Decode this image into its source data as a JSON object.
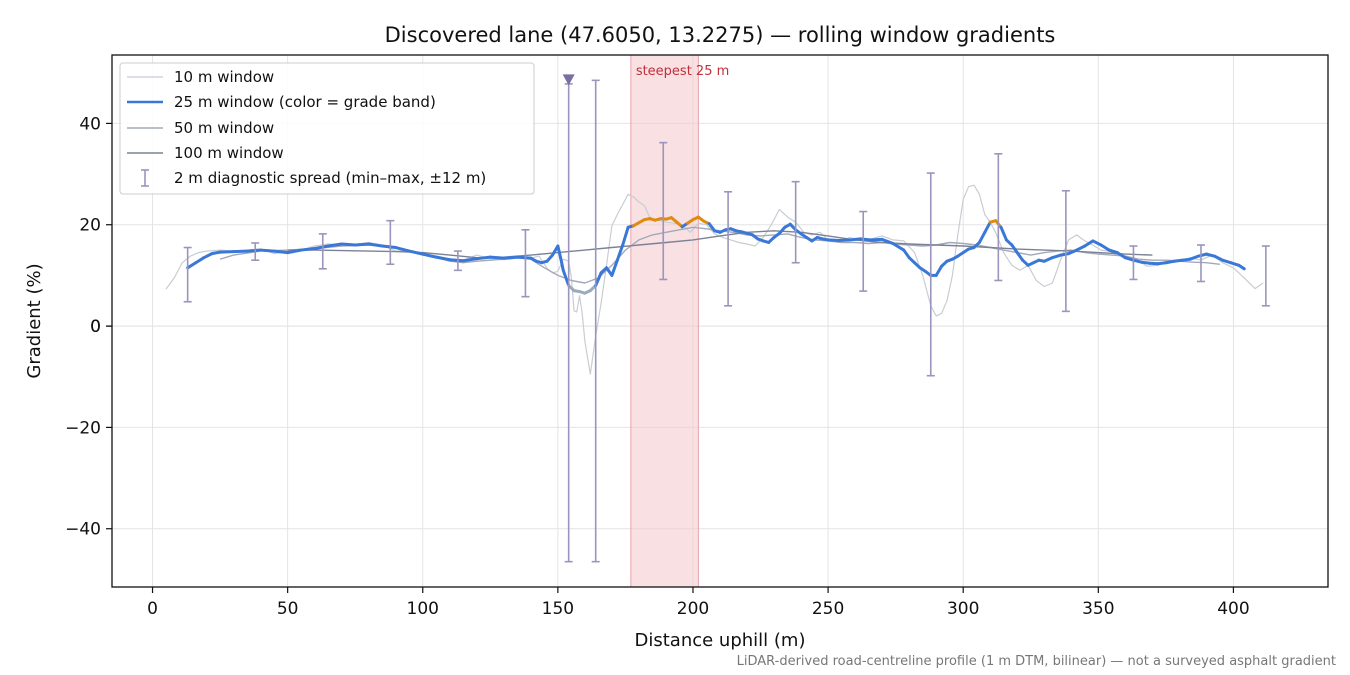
{
  "chart_data": {
    "type": "line",
    "title": "Discovered lane (47.6050, 13.2275) — rolling window gradients",
    "xlabel": "Distance uphill (m)",
    "ylabel": "Gradient (%)",
    "xlim": [
      -15,
      435
    ],
    "ylim": [
      -51.5,
      53.5
    ],
    "xticks": [
      0,
      50,
      100,
      150,
      200,
      250,
      300,
      350,
      400
    ],
    "yticks": [
      -40,
      -20,
      0,
      20,
      40
    ],
    "grid": true,
    "legend_position": "top-left",
    "footnote": "LiDAR-derived road-centreline profile (1 m DTM, bilinear) — not a surveyed asphalt gradient",
    "steepest_span": {
      "x0": 177,
      "x1": 202,
      "label": "steepest 25 m",
      "color": "#f2c6cc"
    },
    "marker": {
      "x": 154,
      "y": 48.5,
      "color": "#7a6fa0"
    },
    "band_colors": {
      "normal": "#3a78d8",
      "steep": "#e08a10",
      "easy": "#9aabbb"
    },
    "series": [
      {
        "name": "10 m window",
        "color": "#c8cdd3",
        "width": 1.2,
        "x": [
          5,
          8,
          11,
          14,
          17,
          20,
          25,
          30,
          35,
          40,
          45,
          50,
          55,
          60,
          65,
          70,
          75,
          80,
          85,
          90,
          95,
          100,
          105,
          110,
          115,
          120,
          125,
          130,
          135,
          140,
          143,
          146,
          148,
          150,
          152,
          154,
          155,
          156,
          157,
          158,
          159,
          160,
          162,
          164,
          166,
          168,
          170,
          172,
          174,
          176,
          178,
          180,
          182,
          184,
          186,
          188,
          190,
          193,
          196,
          199,
          202,
          205,
          208,
          211,
          214,
          217,
          220,
          223,
          226,
          229,
          232,
          235,
          238,
          241,
          244,
          247,
          250,
          254,
          258,
          262,
          266,
          270,
          274,
          278,
          282,
          285,
          288,
          290,
          292,
          294,
          296,
          298,
          300,
          302,
          304,
          306,
          308,
          310,
          312,
          315,
          318,
          321,
          324,
          327,
          330,
          333,
          336,
          339,
          342,
          345,
          348,
          351,
          354,
          357,
          360,
          364,
          368,
          372,
          376,
          380,
          384,
          388,
          392,
          396,
          400,
          404,
          408,
          411
        ],
        "y": [
          7.3,
          9.5,
          12.5,
          13.8,
          14.5,
          14.8,
          15.0,
          14.8,
          15.0,
          15.2,
          14.3,
          14.8,
          15.0,
          15.8,
          16.2,
          16.0,
          16.1,
          16.5,
          16.0,
          14.8,
          14.9,
          14.3,
          13.8,
          13.2,
          13.0,
          14.0,
          13.3,
          13.1,
          13.4,
          13.4,
          13.8,
          11.4,
          10.5,
          10.8,
          13.2,
          12.8,
          9.5,
          3.0,
          2.8,
          6.0,
          2.5,
          -3.0,
          -9.5,
          -2.0,
          4.5,
          12.0,
          19.8,
          22.0,
          24.0,
          26.0,
          25.5,
          24.5,
          23.8,
          21.5,
          21.0,
          20.8,
          20.5,
          20.3,
          20.0,
          18.5,
          20.3,
          20.0,
          18.2,
          17.5,
          17.0,
          16.5,
          16.2,
          15.8,
          17.5,
          20.0,
          23.0,
          21.5,
          20.5,
          18.5,
          18.0,
          18.5,
          17.0,
          16.5,
          17.5,
          17.0,
          17.2,
          17.8,
          17.0,
          16.8,
          14.5,
          10.0,
          4.0,
          2.0,
          2.5,
          5.0,
          10.0,
          18.0,
          25.0,
          27.5,
          27.8,
          26.0,
          22.0,
          20.5,
          18.5,
          14.5,
          12.0,
          11.0,
          12.0,
          9.0,
          7.8,
          8.5,
          13.0,
          17.0,
          18.0,
          16.8,
          16.0,
          15.0,
          14.8,
          14.0,
          13.8,
          13.2,
          11.8,
          12.0,
          13.0,
          12.8,
          13.5,
          13.0,
          14.0,
          12.5,
          11.5,
          9.5,
          7.4,
          8.5
        ]
      },
      {
        "name": "25 m window (color = grade band)",
        "color": "#3a78d8",
        "width": 2.5,
        "x": [
          13,
          16,
          19,
          22,
          25,
          30,
          35,
          40,
          45,
          50,
          55,
          60,
          65,
          70,
          75,
          80,
          85,
          90,
          95,
          100,
          105,
          110,
          115,
          120,
          125,
          130,
          135,
          140,
          142,
          144,
          146,
          148,
          150,
          151,
          152,
          154,
          156,
          158,
          160,
          162,
          164,
          166,
          168,
          170,
          172,
          174,
          176,
          178,
          180,
          182,
          184,
          186,
          188,
          190,
          192,
          194,
          196,
          198,
          200,
          202,
          204,
          206,
          208,
          210,
          212,
          214,
          216,
          218,
          220,
          222,
          224,
          226,
          228,
          230,
          232,
          234,
          236,
          238,
          240,
          242,
          244,
          246,
          248,
          250,
          254,
          258,
          262,
          266,
          270,
          274,
          278,
          280,
          282,
          284,
          286,
          288,
          290,
          292,
          294,
          296,
          298,
          300,
          302,
          304,
          306,
          308,
          310,
          312,
          314,
          316,
          318,
          320,
          322,
          324,
          326,
          328,
          330,
          333,
          336,
          339,
          342,
          345,
          348,
          351,
          354,
          357,
          360,
          363,
          366,
          369,
          372,
          375,
          378,
          381,
          384,
          387,
          390,
          393,
          396,
          399,
          402,
          404
        ],
        "y": [
          11.5,
          12.5,
          13.5,
          14.3,
          14.6,
          14.7,
          14.8,
          15.0,
          14.8,
          14.5,
          15.0,
          15.3,
          15.8,
          16.2,
          16.0,
          16.2,
          15.8,
          15.5,
          14.8,
          14.2,
          13.6,
          13.1,
          12.9,
          13.3,
          13.6,
          13.4,
          13.6,
          13.4,
          12.8,
          12.5,
          12.8,
          14.0,
          15.8,
          13.5,
          11.0,
          8.0,
          7.0,
          6.8,
          6.5,
          7.0,
          8.0,
          10.5,
          11.5,
          10.0,
          13.0,
          16.0,
          19.5,
          19.8,
          20.4,
          21.0,
          21.2,
          20.9,
          21.2,
          21.1,
          21.4,
          20.5,
          19.6,
          20.3,
          21.0,
          21.5,
          20.7,
          20.2,
          18.8,
          18.5,
          19.0,
          19.2,
          18.8,
          18.6,
          18.3,
          18.0,
          17.2,
          16.8,
          16.5,
          17.5,
          18.3,
          19.5,
          20.1,
          19.0,
          18.2,
          17.5,
          16.8,
          17.5,
          17.2,
          17.0,
          16.9,
          17.0,
          17.2,
          17.0,
          17.1,
          16.3,
          15.0,
          13.5,
          12.5,
          11.5,
          10.8,
          10.0,
          10.0,
          11.8,
          12.8,
          13.2,
          13.8,
          14.5,
          15.2,
          15.5,
          16.5,
          18.5,
          20.5,
          20.8,
          19.5,
          17.0,
          16.0,
          14.5,
          13.0,
          12.0,
          12.5,
          13.0,
          12.8,
          13.5,
          14.0,
          14.3,
          15.0,
          15.8,
          16.8,
          16.0,
          15.0,
          14.5,
          13.5,
          13.0,
          12.6,
          12.4,
          12.3,
          12.5,
          12.8,
          13.0,
          13.2,
          13.8,
          14.2,
          13.8,
          13.0,
          12.5,
          12.0,
          11.3
        ]
      },
      {
        "name": "50 m window",
        "color": "#a3a9b9",
        "width": 1.4,
        "x": [
          25,
          30,
          40,
          50,
          60,
          70,
          80,
          90,
          100,
          105,
          110,
          115,
          120,
          125,
          130,
          135,
          140,
          145,
          150,
          155,
          160,
          165,
          170,
          175,
          180,
          185,
          190,
          195,
          200,
          205,
          210,
          215,
          220,
          225,
          230,
          235,
          240,
          245,
          250,
          255,
          260,
          265,
          270,
          275,
          280,
          285,
          290,
          295,
          300,
          305,
          310,
          315,
          320,
          325,
          330,
          335,
          340,
          345,
          350,
          355,
          360,
          365,
          370,
          375,
          380,
          385,
          390,
          395
        ],
        "y": [
          13.2,
          14.0,
          14.8,
          15.0,
          15.3,
          15.8,
          16.0,
          15.5,
          14.3,
          13.5,
          12.8,
          12.5,
          12.8,
          13.0,
          13.2,
          13.5,
          13.2,
          11.5,
          10.0,
          9.0,
          8.5,
          9.5,
          12.0,
          15.0,
          17.0,
          18.0,
          18.5,
          19.0,
          19.5,
          19.2,
          18.8,
          18.5,
          18.0,
          17.8,
          18.0,
          18.2,
          17.5,
          17.0,
          16.8,
          16.5,
          16.5,
          16.3,
          16.5,
          16.2,
          16.0,
          15.8,
          16.0,
          16.5,
          16.3,
          16.0,
          15.5,
          15.0,
          14.5,
          14.0,
          14.5,
          14.8,
          15.0,
          14.5,
          14.2,
          14.0,
          13.8,
          13.2,
          13.0,
          13.0,
          12.8,
          12.6,
          12.5,
          12.2
        ]
      },
      {
        "name": "100 m window",
        "color": "#7b8296",
        "width": 1.4,
        "x": [
          50,
          60,
          70,
          80,
          90,
          100,
          110,
          120,
          130,
          140,
          150,
          160,
          170,
          180,
          190,
          200,
          210,
          220,
          230,
          240,
          250,
          260,
          270,
          280,
          290,
          300,
          310,
          320,
          330,
          340,
          350,
          360,
          370
        ],
        "y": [
          15.0,
          15.0,
          14.9,
          14.8,
          14.7,
          14.5,
          14.0,
          13.5,
          13.6,
          14.0,
          14.5,
          15.0,
          15.5,
          16.0,
          16.5,
          17.0,
          17.8,
          18.5,
          18.8,
          18.5,
          17.8,
          17.0,
          16.5,
          16.2,
          16.0,
          15.8,
          15.5,
          15.2,
          15.0,
          14.8,
          14.5,
          14.2,
          14.0
        ]
      }
    ],
    "error_bars": {
      "name": "2 m diagnostic spread (min–max, ±12 m)",
      "color": "#9a95bd",
      "x": [
        13,
        38,
        63,
        88,
        113,
        138,
        154,
        164,
        189,
        213,
        238,
        263,
        288,
        313,
        338,
        363,
        388,
        412
      ],
      "min": [
        4.8,
        13.0,
        11.3,
        12.2,
        11.0,
        5.8,
        -46.5,
        -46.5,
        9.2,
        4.0,
        12.5,
        6.9,
        -9.8,
        9.0,
        2.9,
        9.2,
        8.8,
        4.0
      ],
      "max": [
        15.5,
        16.4,
        18.2,
        20.8,
        14.8,
        19.0,
        47.8,
        48.5,
        36.2,
        26.5,
        28.5,
        22.6,
        30.2,
        34.0,
        26.7,
        15.8,
        16.0,
        15.8
      ]
    }
  }
}
